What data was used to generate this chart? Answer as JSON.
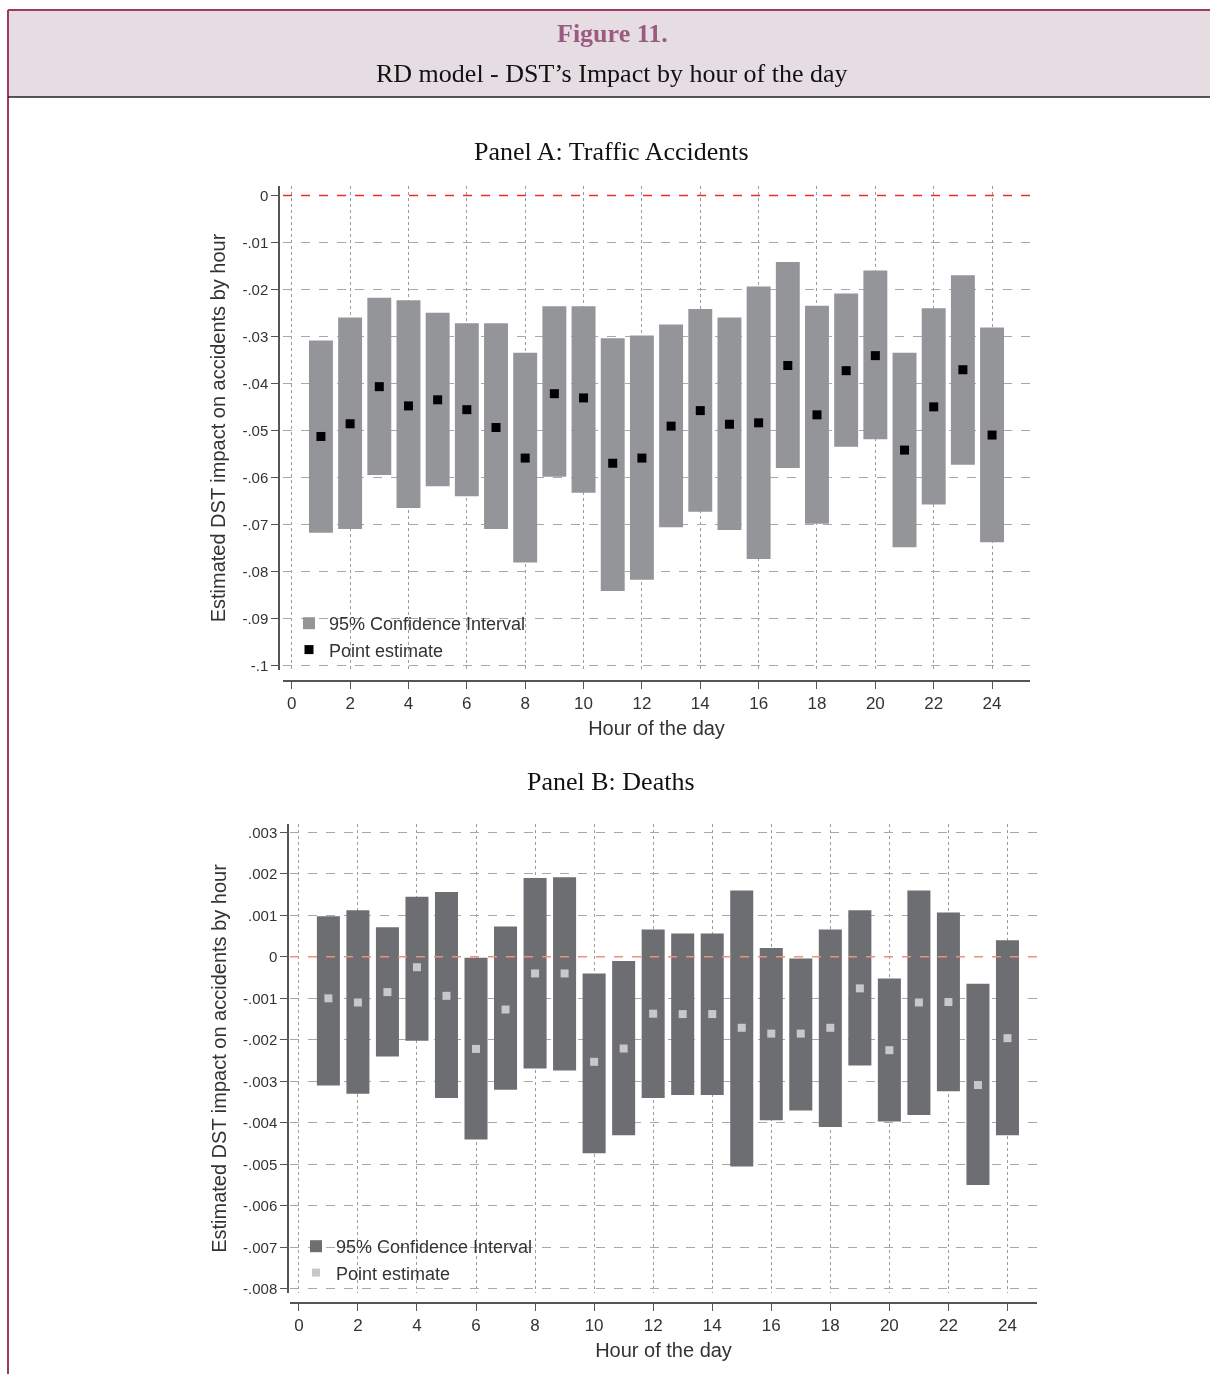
{
  "chart_data": [
    {
      "type": "other",
      "title": "Figure 11.",
      "subtitle": "RD model - DST’s Impact by hour of the day"
    },
    {
      "type": "bar",
      "title": "Panel A: Traffic Accidents",
      "xlabel": "Hour of the day",
      "ylabel": "Estimated DST impact on accidents by hour",
      "x": [
        1,
        2,
        3,
        4,
        5,
        6,
        7,
        8,
        9,
        10,
        11,
        12,
        13,
        14,
        15,
        16,
        17,
        18,
        19,
        20,
        21,
        22,
        23,
        24
      ],
      "series": [
        {
          "name": "95% Confidence Interval",
          "type": "bar",
          "color": "#939598",
          "base": [
            -0.0718,
            -0.071,
            -0.0595,
            -0.0665,
            -0.0619,
            -0.064,
            -0.071,
            -0.0781,
            -0.0599,
            -0.0633,
            -0.0842,
            -0.0818,
            -0.0706,
            -0.0673,
            -0.0712,
            -0.0774,
            -0.058,
            -0.0699,
            -0.0535,
            -0.0519,
            -0.0749,
            -0.0658,
            -0.0573,
            -0.0738
          ],
          "values": [
            0.0409,
            0.045,
            0.0377,
            0.0442,
            0.0369,
            0.0368,
            0.0438,
            0.0446,
            0.0363,
            0.0397,
            0.0538,
            0.052,
            0.0431,
            0.0431,
            0.0452,
            0.058,
            0.0438,
            0.0464,
            0.0326,
            0.0359,
            0.0414,
            0.0418,
            0.0403,
            0.0457
          ]
        },
        {
          "name": "Point estimate",
          "type": "scatter",
          "color": "#000000",
          "values": [
            -0.0513,
            -0.0486,
            -0.0407,
            -0.0448,
            -0.0435,
            -0.0456,
            -0.0494,
            -0.0559,
            -0.0422,
            -0.0431,
            -0.057,
            -0.0559,
            -0.0491,
            -0.0458,
            -0.0487,
            -0.0484,
            -0.0362,
            -0.0467,
            -0.0373,
            -0.0341,
            -0.0542,
            -0.045,
            -0.0371,
            -0.051
          ]
        }
      ],
      "xlim": [
        -0.3,
        25.3
      ],
      "xticks": [
        0,
        2,
        4,
        6,
        8,
        10,
        12,
        14,
        16,
        18,
        20,
        22,
        24
      ],
      "ylim": [
        -0.101,
        0.002
      ],
      "yticks": [
        0,
        {
          "value": -0.01,
          "label": "-.01"
        },
        {
          "value": -0.02,
          "label": "-.02"
        },
        {
          "value": -0.03,
          "label": "-.03"
        },
        {
          "value": -0.04,
          "label": "-.04"
        },
        {
          "value": -0.05,
          "label": "-.05"
        },
        {
          "value": -0.06,
          "label": "-.06"
        },
        {
          "value": -0.07,
          "label": "-.07"
        },
        {
          "value": -0.08,
          "label": "-.08"
        },
        {
          "value": -0.09,
          "label": "-.09"
        },
        {
          "value": -0.1,
          "label": "-.1"
        }
      ],
      "ref_lines": [
        {
          "axis": "y",
          "value": 0,
          "color": "#e8312a",
          "line_style": "dashed"
        }
      ],
      "grid": true,
      "legend": "bottom left",
      "marker": "square"
    },
    {
      "type": "bar",
      "title": "Panel B: Deaths",
      "xlabel": "Hour of the day",
      "ylabel": "Estimated DST impact on accidents by hour",
      "x": [
        1,
        2,
        3,
        4,
        5,
        6,
        7,
        8,
        9,
        10,
        11,
        12,
        13,
        14,
        15,
        16,
        17,
        18,
        19,
        20,
        21,
        22,
        23,
        24
      ],
      "series": [
        {
          "name": "95% Confidence Interval",
          "type": "bar",
          "color": "#6d6e71",
          "base": [
            -0.0031,
            -0.0033,
            -0.0024,
            -0.00202,
            -0.0034,
            -0.0044,
            -0.0032,
            -0.00269,
            -0.00274,
            -0.00473,
            -0.0043,
            -0.0034,
            -0.00333,
            -0.00333,
            -0.00505,
            -0.00394,
            -0.0037,
            -0.0041,
            -0.00262,
            -0.00397,
            -0.00381,
            -0.00324,
            -0.0055,
            -0.0043
          ],
          "values": [
            0.00408,
            0.00442,
            0.00311,
            0.00347,
            0.00496,
            0.00438,
            0.00393,
            0.00459,
            0.00466,
            0.00433,
            0.0042,
            0.00406,
            0.00389,
            0.00389,
            0.00665,
            0.00415,
            0.00366,
            0.00476,
            0.00374,
            0.00345,
            0.00541,
            0.00431,
            0.00485,
            0.0047
          ]
        },
        {
          "name": "Point estimate",
          "type": "scatter",
          "color": "#c7c8ca",
          "values": [
            -0.001,
            -0.0011,
            -0.00085,
            -0.00025,
            -0.00094,
            -0.00222,
            -0.00127,
            -0.0004,
            -0.0004,
            -0.00253,
            -0.00221,
            -0.00137,
            -0.00138,
            -0.00138,
            -0.00171,
            -0.00185,
            -0.00185,
            -0.00171,
            -0.00076,
            -0.00225,
            -0.0011,
            -0.00109,
            -0.00309,
            -0.00196
          ]
        }
      ],
      "xlim": [
        -0.3,
        25.0
      ],
      "xticks": [
        0,
        2,
        4,
        6,
        8,
        10,
        12,
        14,
        16,
        18,
        20,
        22,
        24
      ],
      "ylim": [
        -0.0081,
        0.0032
      ],
      "yticks": [
        {
          "value": 0.003,
          "label": ".003"
        },
        {
          "value": 0.002,
          "label": ".002"
        },
        {
          "value": 0.001,
          "label": ".001"
        },
        0,
        {
          "value": -0.001,
          "label": "-.001"
        },
        {
          "value": -0.002,
          "label": "-.002"
        },
        {
          "value": -0.003,
          "label": "-.003"
        },
        {
          "value": -0.004,
          "label": "-.004"
        },
        {
          "value": -0.005,
          "label": "-.005"
        },
        {
          "value": -0.006,
          "label": "-.006"
        },
        {
          "value": -0.007,
          "label": "-.007"
        },
        {
          "value": -0.008,
          "label": "-.008"
        }
      ],
      "ref_lines": [
        {
          "axis": "y",
          "value": 0,
          "color": "#ee8f80",
          "line_style": "dashed"
        }
      ],
      "grid": true,
      "legend": "bottom left",
      "marker": "square"
    }
  ]
}
